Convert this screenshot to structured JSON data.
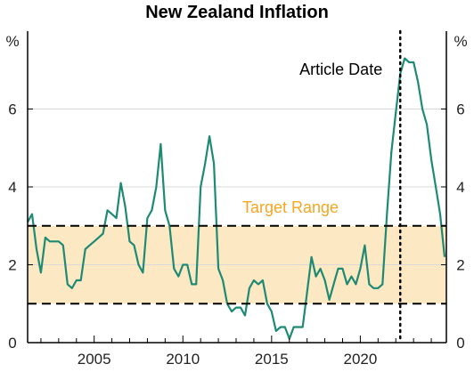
{
  "chart_data": {
    "type": "line",
    "title": "New Zealand Inflation",
    "ylabel_left": "%",
    "ylabel_right": "%",
    "ylim": [
      0,
      8
    ],
    "xlim": [
      2001.25,
      2024.85
    ],
    "y_ticks": [
      0,
      2,
      4,
      6
    ],
    "y_tick_labels": [
      "0",
      "2",
      "4",
      "6"
    ],
    "x_ticks": [
      2005,
      2010,
      2015,
      2020
    ],
    "x_tick_labels": [
      "2005",
      "2010",
      "2015",
      "2020"
    ],
    "target_range": {
      "low": 1,
      "high": 3,
      "label": "Target Range"
    },
    "article_date": {
      "x": 2022.25,
      "label": "Article Date"
    },
    "grid": true,
    "colors": {
      "line": "#1e8a73",
      "band": "#fde8c4",
      "target_label": "#f5a623",
      "grid": "#d9d9d9"
    },
    "series": [
      {
        "x": [
          2001.25,
          2001.5,
          2001.75,
          2002.0,
          2002.25,
          2002.5,
          2002.75,
          2003.0,
          2003.25,
          2003.5,
          2003.75,
          2004.0,
          2004.25,
          2004.5,
          2004.75,
          2005.0,
          2005.25,
          2005.5,
          2005.75,
          2006.0,
          2006.25,
          2006.5,
          2006.75,
          2007.0,
          2007.25,
          2007.5,
          2007.75,
          2008.0,
          2008.25,
          2008.5,
          2008.75,
          2009.0,
          2009.25,
          2009.5,
          2009.75,
          2010.0,
          2010.25,
          2010.5,
          2010.75,
          2011.0,
          2011.25,
          2011.5,
          2011.75,
          2012.0,
          2012.25,
          2012.5,
          2012.75,
          2013.0,
          2013.25,
          2013.5,
          2013.75,
          2014.0,
          2014.25,
          2014.5,
          2014.75,
          2015.0,
          2015.25,
          2015.5,
          2015.75,
          2016.0,
          2016.25,
          2016.5,
          2016.75,
          2017.0,
          2017.25,
          2017.5,
          2017.75,
          2018.0,
          2018.25,
          2018.5,
          2018.75,
          2019.0,
          2019.25,
          2019.5,
          2019.75,
          2020.0,
          2020.25,
          2020.5,
          2020.75,
          2021.0,
          2021.25,
          2021.5,
          2021.75,
          2022.0,
          2022.25,
          2022.5,
          2022.75,
          2023.0,
          2023.25,
          2023.5,
          2023.75,
          2024.0,
          2024.25,
          2024.5,
          2024.75
        ],
        "y": [
          3.1,
          3.3,
          2.4,
          1.8,
          2.7,
          2.6,
          2.6,
          2.6,
          2.5,
          1.5,
          1.4,
          1.6,
          1.6,
          2.4,
          2.5,
          2.6,
          2.7,
          2.8,
          3.4,
          3.3,
          3.2,
          4.1,
          3.5,
          2.6,
          2.5,
          2.0,
          1.8,
          3.2,
          3.4,
          4.0,
          5.1,
          3.4,
          3.0,
          1.9,
          1.7,
          2.0,
          2.0,
          1.5,
          1.5,
          4.0,
          4.6,
          5.3,
          4.6,
          1.9,
          1.6,
          1.0,
          0.8,
          0.9,
          0.9,
          0.7,
          1.4,
          1.6,
          1.5,
          1.6,
          1.0,
          0.8,
          0.3,
          0.4,
          0.4,
          0.1,
          0.4,
          0.4,
          0.4,
          1.3,
          2.2,
          1.7,
          1.9,
          1.6,
          1.1,
          1.5,
          1.9,
          1.9,
          1.5,
          1.7,
          1.5,
          1.9,
          2.5,
          1.5,
          1.4,
          1.4,
          1.5,
          3.3,
          4.9,
          5.9,
          6.9,
          7.3,
          7.2,
          7.2,
          6.7,
          6.0,
          5.6,
          4.7,
          4.0,
          3.3,
          2.2
        ]
      }
    ]
  }
}
